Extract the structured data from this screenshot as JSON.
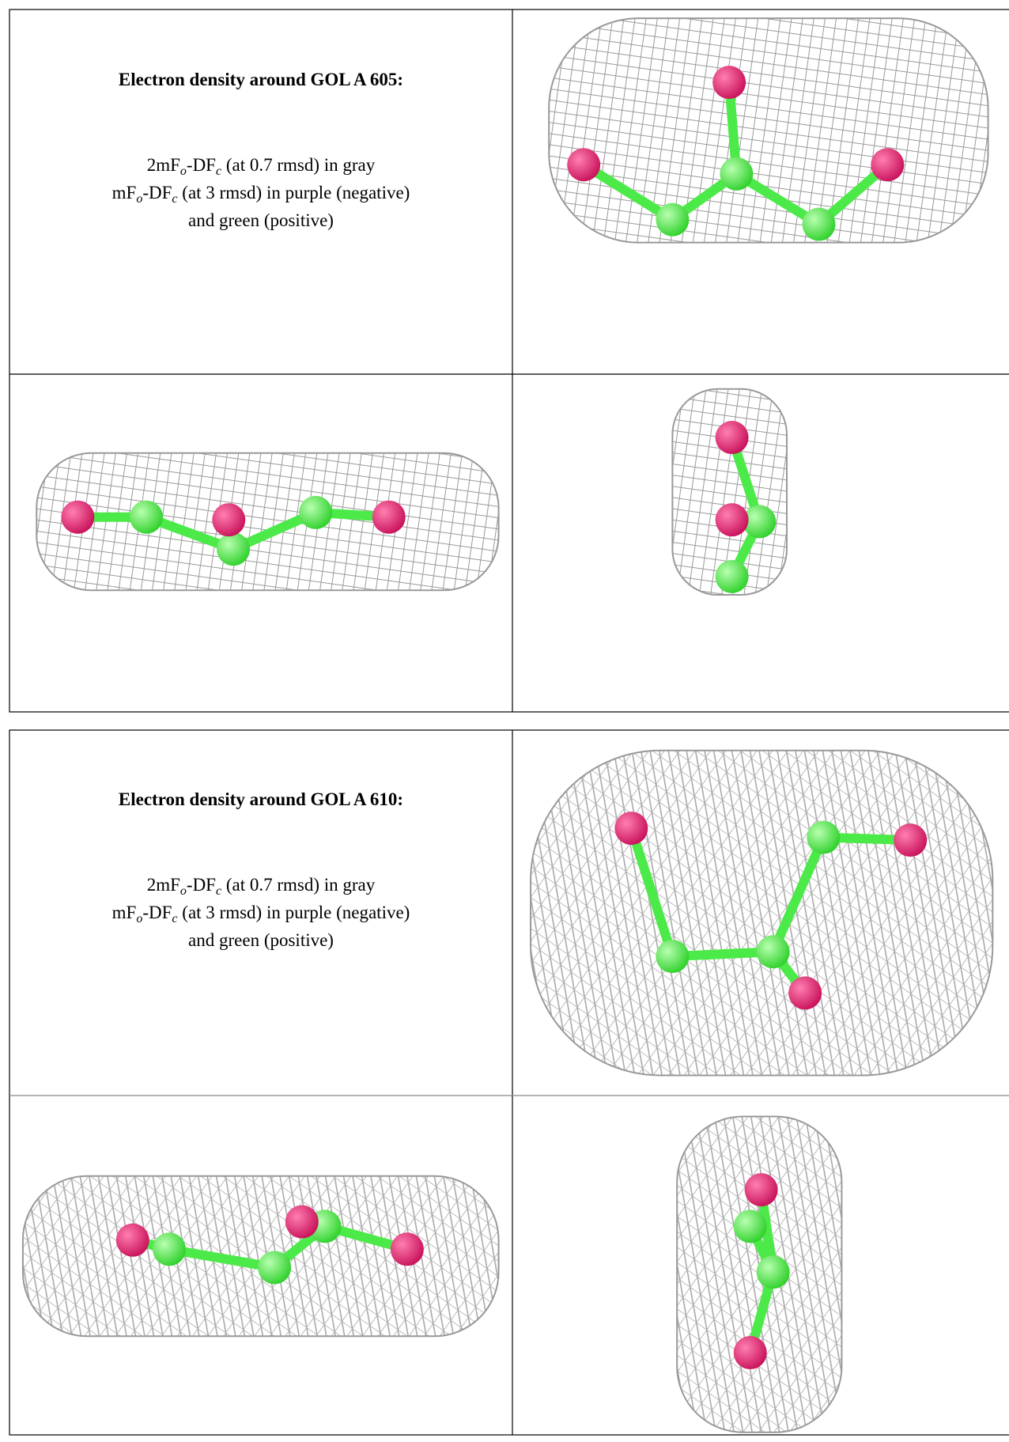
{
  "blocks": [
    {
      "title": "Electron density around GOL A 605:",
      "lines": [
        [
          "2mF",
          "o",
          "-DF",
          "c",
          " (at 0.7 rmsd) in gray"
        ],
        [
          "mF",
          "o",
          "-DF",
          "c",
          " (at 3 rmsd) in purple (negative)"
        ],
        [
          "and green (positive)"
        ]
      ]
    },
    {
      "title": "Electron density around GOL A 610:",
      "lines": [
        [
          "2mF",
          "o",
          "-DF",
          "c",
          " (at 0.7 rmsd) in gray"
        ],
        [
          "mF",
          "o",
          "-DF",
          "c",
          " (at 3 rmsd) in purple (negative)"
        ],
        [
          "and green (positive)"
        ]
      ]
    }
  ]
}
